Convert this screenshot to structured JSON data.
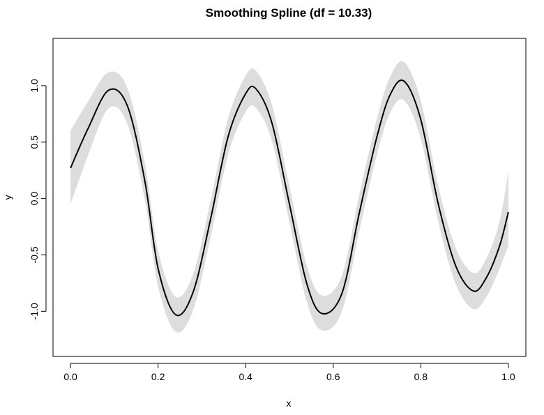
{
  "chart_data": {
    "type": "line",
    "title": "Smoothing Spline (df = 10.33)",
    "xlabel": "x",
    "ylabel": "y",
    "xlim": [
      -0.04,
      1.04
    ],
    "ylim": [
      -1.4,
      1.42
    ],
    "x_ticks": [
      0.0,
      0.2,
      0.4,
      0.6,
      0.8,
      1.0
    ],
    "x_tick_labels": [
      "0.0",
      "0.2",
      "0.4",
      "0.6",
      "0.8",
      "1.0"
    ],
    "y_ticks": [
      -1.0,
      -0.5,
      0.0,
      0.5,
      1.0
    ],
    "y_tick_labels": [
      "-1.0",
      "-0.5",
      "0.0",
      "0.5",
      "1.0"
    ],
    "grid": false,
    "colors": {
      "line": "#000000",
      "band": "#dddddd",
      "frame": "#000000"
    },
    "series": [
      {
        "x": [
          0.0,
          0.04,
          0.087,
          0.13,
          0.17,
          0.2,
          0.24,
          0.28,
          0.32,
          0.36,
          0.4,
          0.424,
          0.46,
          0.5,
          0.54,
          0.575,
          0.62,
          0.66,
          0.7,
          0.73,
          0.762,
          0.8,
          0.84,
          0.88,
          0.92,
          0.95,
          0.98,
          1.0
        ],
        "y": [
          0.27,
          0.62,
          0.96,
          0.82,
          0.15,
          -0.62,
          -1.03,
          -0.83,
          -0.18,
          0.55,
          0.93,
          0.97,
          0.67,
          -0.05,
          -0.76,
          -1.02,
          -0.84,
          -0.12,
          0.55,
          0.92,
          1.04,
          0.7,
          -0.05,
          -0.6,
          -0.82,
          -0.7,
          -0.42,
          -0.12
        ],
        "lower": [
          -0.05,
          0.38,
          0.8,
          0.66,
          -0.02,
          -0.78,
          -1.18,
          -0.99,
          -0.34,
          0.39,
          0.77,
          0.8,
          0.51,
          -0.21,
          -0.92,
          -1.17,
          -1.0,
          -0.28,
          0.39,
          0.76,
          0.87,
          0.53,
          -0.21,
          -0.76,
          -0.98,
          -0.87,
          -0.62,
          -0.42
        ],
        "upper": [
          0.6,
          0.86,
          1.12,
          0.98,
          0.31,
          -0.46,
          -0.87,
          -0.67,
          -0.02,
          0.71,
          1.09,
          1.13,
          0.83,
          0.11,
          -0.6,
          -0.86,
          -0.68,
          0.04,
          0.71,
          1.08,
          1.21,
          0.87,
          0.11,
          -0.44,
          -0.66,
          -0.53,
          -0.2,
          0.24
        ]
      }
    ]
  }
}
